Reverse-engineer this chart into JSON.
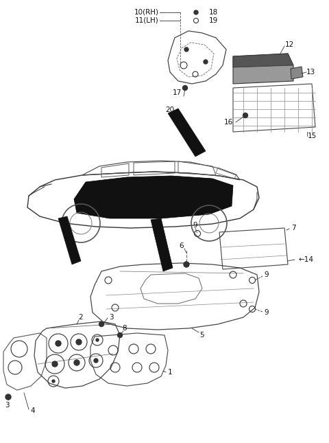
{
  "bg_color": "#ffffff",
  "line_color": "#333333",
  "label_fontsize": 7.5,
  "fig_w": 4.8,
  "fig_h": 6.45,
  "dpi": 100
}
